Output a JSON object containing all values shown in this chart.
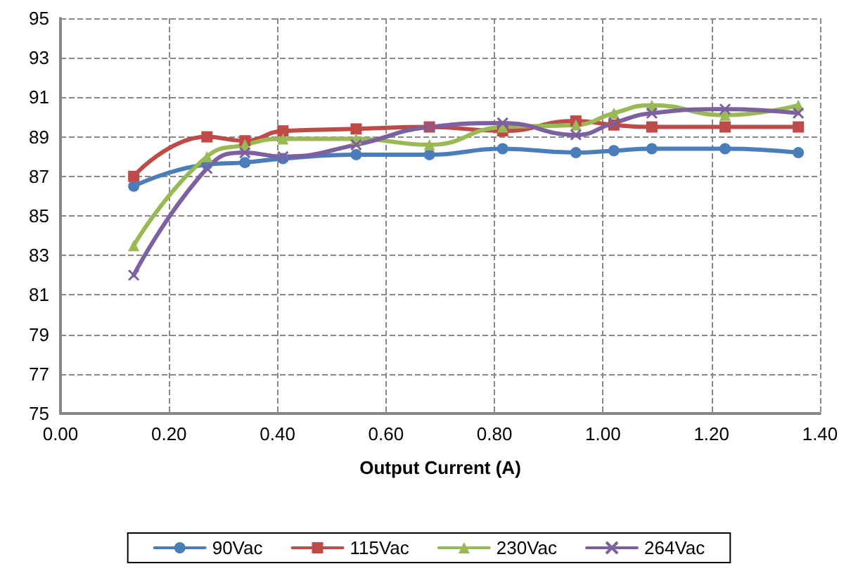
{
  "chart_data": {
    "type": "line",
    "xlabel": "Output Current (A)",
    "x": [
      0.135,
      0.27,
      0.34,
      0.41,
      0.545,
      0.68,
      0.815,
      0.95,
      1.02,
      1.09,
      1.225,
      1.36
    ],
    "series": [
      {
        "name": "90Vac",
        "color": "#4a7ebb",
        "marker": "circle",
        "values": [
          86.5,
          87.6,
          87.7,
          87.9,
          88.1,
          88.1,
          88.4,
          88.2,
          88.3,
          88.4,
          88.4,
          88.2
        ]
      },
      {
        "name": "115Vac",
        "color": "#be4b48",
        "marker": "square",
        "values": [
          87.0,
          89.0,
          88.8,
          89.3,
          89.4,
          89.5,
          89.3,
          89.8,
          89.6,
          89.5,
          89.5,
          89.5
        ]
      },
      {
        "name": "230Vac",
        "color": "#98b954",
        "marker": "triangle",
        "values": [
          83.5,
          88.0,
          88.6,
          88.9,
          88.9,
          88.6,
          89.5,
          89.6,
          90.2,
          90.6,
          90.1,
          90.6
        ]
      },
      {
        "name": "264Vac",
        "color": "#7d60a0",
        "marker": "cross",
        "values": [
          82.0,
          87.4,
          88.2,
          88.0,
          88.6,
          89.5,
          89.7,
          89.1,
          89.7,
          90.2,
          90.4,
          90.2
        ]
      }
    ],
    "xlim": [
      0,
      1.4
    ],
    "xticks": [
      {
        "value": 0,
        "label": "0.00"
      },
      {
        "value": 0.2,
        "label": "0.20"
      },
      {
        "value": 0.4,
        "label": "0.40"
      },
      {
        "value": 0.6,
        "label": "0.60"
      },
      {
        "value": 0.8,
        "label": "0.80"
      },
      {
        "value": 1.0,
        "label": "1.00"
      },
      {
        "value": 1.2,
        "label": "1.20"
      },
      {
        "value": 1.4,
        "label": "1.40"
      }
    ],
    "ylim": [
      75,
      95
    ],
    "yticks": [
      75,
      77,
      79,
      81,
      83,
      85,
      87,
      89,
      91,
      93,
      95
    ],
    "grid": true,
    "legend": "bottom",
    "line_style": "solid"
  }
}
